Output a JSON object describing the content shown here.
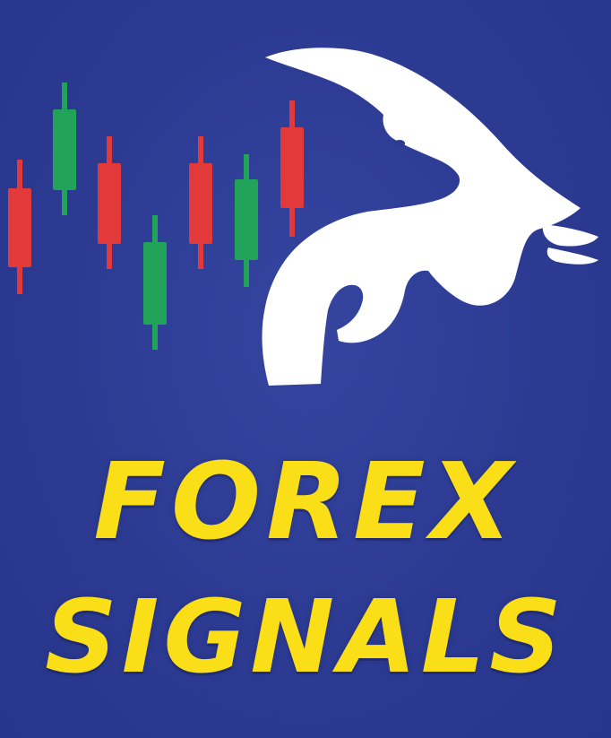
{
  "headline": {
    "line1": "FOREX",
    "line2": "SIGNALS"
  },
  "colors": {
    "background": "#2d3c96",
    "text": "#f9de18",
    "candle_bullish": "#21a45a",
    "candle_bearish": "#e23a3a",
    "bull_logo": "#ffffff"
  },
  "icons": {
    "logo": "bull-head-icon",
    "chart": "candlestick-chart-icon"
  }
}
